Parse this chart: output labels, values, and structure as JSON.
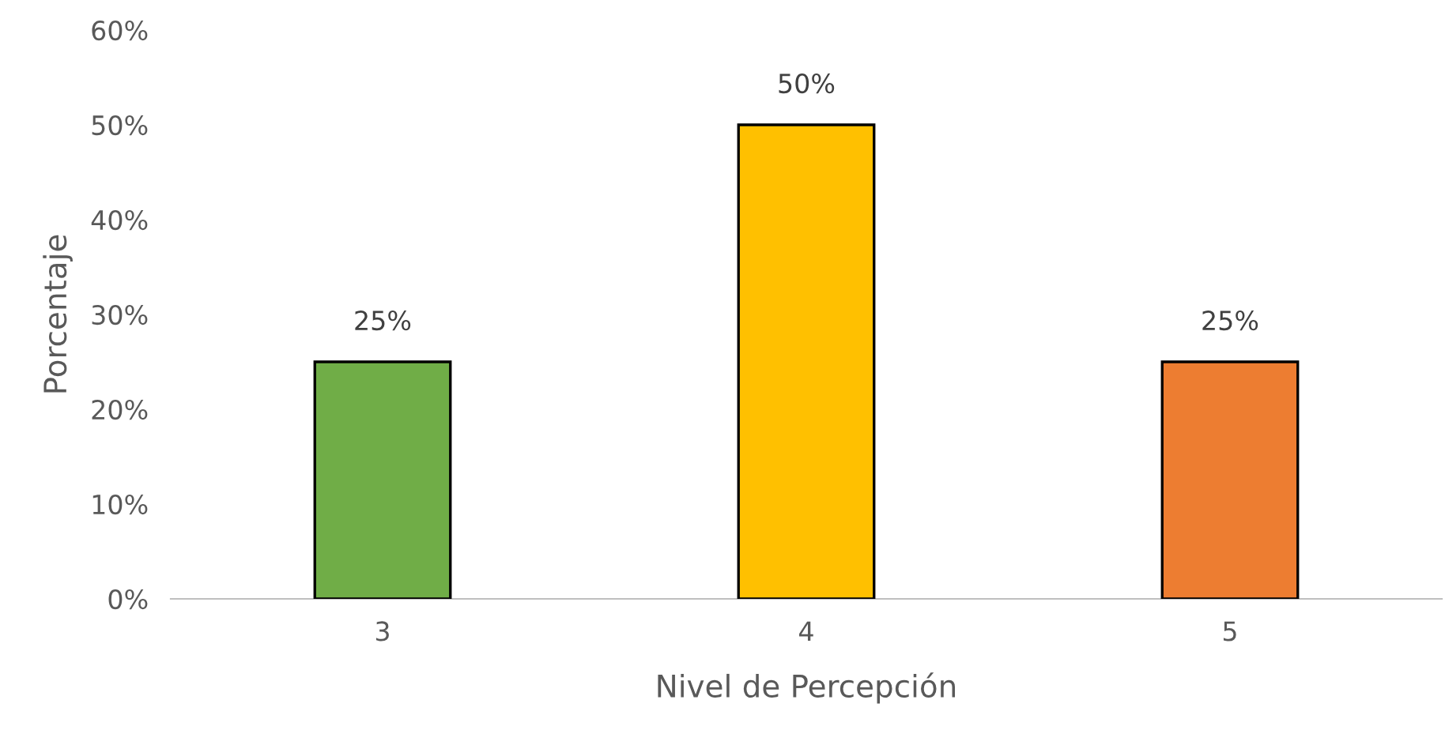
{
  "chart_data": {
    "type": "bar",
    "xlabel": "Nivel de Percepción",
    "ylabel": "Porcentaje",
    "categories": [
      "3",
      "4",
      "5"
    ],
    "values": [
      25,
      50,
      25
    ],
    "colors": [
      "#70ad47",
      "#ffc000",
      "#ed7d31"
    ],
    "value_labels": [
      "25%",
      "50%",
      "25%"
    ],
    "ylim": [
      0,
      60
    ],
    "yticks": [
      {
        "value": 0,
        "label": "0%"
      },
      {
        "value": 10,
        "label": "10%"
      },
      {
        "value": 20,
        "label": "20%"
      },
      {
        "value": 30,
        "label": "30%"
      },
      {
        "value": 40,
        "label": "40%"
      },
      {
        "value": 50,
        "label": "50%"
      },
      {
        "value": 60,
        "label": "60%"
      }
    ],
    "grid": false,
    "legend": false
  }
}
